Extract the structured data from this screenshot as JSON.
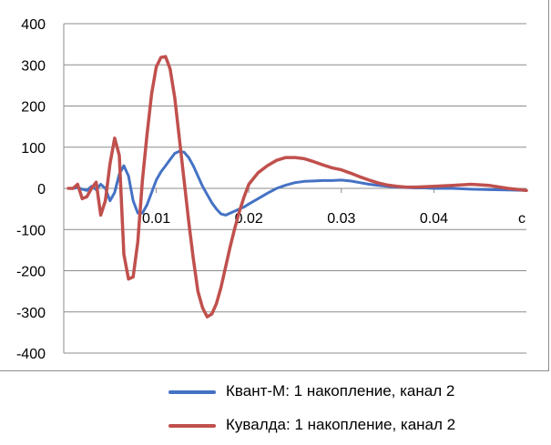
{
  "chart_data": {
    "type": "line",
    "x_unit_label": "с",
    "ylim": [
      -400,
      400
    ],
    "xlim": [
      0,
      0.05
    ],
    "y_ticks": [
      400,
      300,
      200,
      100,
      0,
      -100,
      -200,
      -300,
      -400
    ],
    "y_tick_labels": [
      "400",
      "300",
      "200",
      "100",
      "0",
      "-100",
      "-200",
      "-300",
      "-400"
    ],
    "x_ticks": [
      0.01,
      0.02,
      0.03,
      0.04
    ],
    "x_tick_labels": [
      "0.01",
      "0.02",
      "0.03",
      "0.04"
    ],
    "grid": "horizontal",
    "legend_position": "bottom",
    "series": [
      {
        "name": "Квант-М: 1 накопление, канал 2",
        "color": "#4472c4",
        "x": [
          0.0005,
          0.001,
          0.0015,
          0.002,
          0.0025,
          0.003,
          0.0035,
          0.004,
          0.0045,
          0.005,
          0.0055,
          0.006,
          0.0065,
          0.007,
          0.0075,
          0.008,
          0.0085,
          0.009,
          0.0095,
          0.01,
          0.0105,
          0.011,
          0.0115,
          0.012,
          0.0125,
          0.013,
          0.0135,
          0.014,
          0.0145,
          0.015,
          0.0155,
          0.016,
          0.0165,
          0.017,
          0.0175,
          0.018,
          0.0185,
          0.019,
          0.0195,
          0.02,
          0.021,
          0.022,
          0.023,
          0.024,
          0.025,
          0.026,
          0.027,
          0.028,
          0.029,
          0.03,
          0.031,
          0.032,
          0.033,
          0.034,
          0.035,
          0.036,
          0.037,
          0.038,
          0.039,
          0.04,
          0.042,
          0.044,
          0.046,
          0.048,
          0.05
        ],
        "y": [
          0,
          0,
          2,
          -2,
          -5,
          5,
          -3,
          10,
          0,
          -30,
          -10,
          35,
          55,
          30,
          -30,
          -60,
          -60,
          -40,
          -10,
          20,
          40,
          55,
          70,
          85,
          90,
          88,
          75,
          55,
          30,
          5,
          -15,
          -35,
          -50,
          -62,
          -65,
          -60,
          -55,
          -50,
          -45,
          -38,
          -25,
          -12,
          0,
          8,
          14,
          17,
          18,
          19,
          19,
          20,
          18,
          14,
          10,
          7,
          5,
          3,
          2,
          1,
          1,
          0,
          0,
          -2,
          -3,
          -4,
          -5
        ]
      },
      {
        "name": "Кувалда: 1 накопление, канал 2",
        "color": "#c0504d",
        "x": [
          0.0005,
          0.001,
          0.0015,
          0.002,
          0.0025,
          0.003,
          0.0035,
          0.004,
          0.0045,
          0.005,
          0.0055,
          0.006,
          0.0065,
          0.007,
          0.0075,
          0.008,
          0.0085,
          0.009,
          0.0095,
          0.01,
          0.0105,
          0.011,
          0.0115,
          0.012,
          0.0125,
          0.013,
          0.0135,
          0.014,
          0.0145,
          0.015,
          0.0155,
          0.016,
          0.0165,
          0.017,
          0.0175,
          0.018,
          0.0185,
          0.019,
          0.0195,
          0.02,
          0.021,
          0.022,
          0.023,
          0.024,
          0.025,
          0.026,
          0.027,
          0.028,
          0.029,
          0.03,
          0.031,
          0.032,
          0.033,
          0.034,
          0.035,
          0.036,
          0.037,
          0.038,
          0.039,
          0.04,
          0.042,
          0.044,
          0.046,
          0.048,
          0.05
        ],
        "y": [
          0,
          0,
          10,
          -25,
          -20,
          0,
          15,
          -65,
          -30,
          60,
          122,
          80,
          -160,
          -220,
          -215,
          -130,
          20,
          130,
          230,
          295,
          318,
          320,
          290,
          220,
          120,
          20,
          -80,
          -170,
          -250,
          -290,
          -312,
          -305,
          -280,
          -240,
          -190,
          -140,
          -95,
          -55,
          -20,
          10,
          38,
          55,
          68,
          75,
          75,
          72,
          65,
          57,
          50,
          45,
          37,
          28,
          20,
          13,
          8,
          5,
          3,
          3,
          4,
          5,
          7,
          10,
          7,
          0,
          -5
        ]
      }
    ]
  }
}
